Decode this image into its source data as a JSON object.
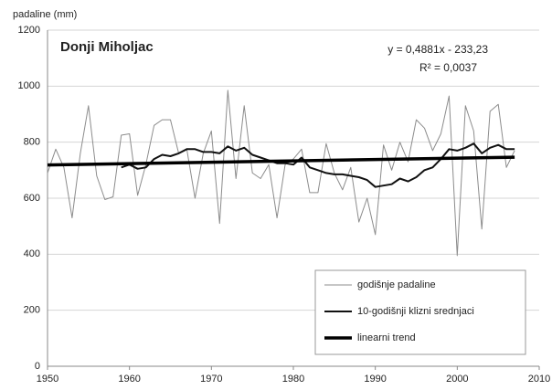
{
  "chart_data": {
    "type": "line",
    "title": "Donji Miholjac",
    "y_label": "padaline (mm)",
    "annotations": [
      "y = 0,4881x - 233,23",
      "R² = 0,0037"
    ],
    "x": [
      1950,
      1951,
      1952,
      1953,
      1954,
      1955,
      1956,
      1957,
      1958,
      1959,
      1960,
      1961,
      1962,
      1963,
      1964,
      1965,
      1966,
      1967,
      1968,
      1969,
      1970,
      1971,
      1972,
      1973,
      1974,
      1975,
      1976,
      1977,
      1978,
      1979,
      1980,
      1981,
      1982,
      1983,
      1984,
      1985,
      1986,
      1987,
      1988,
      1989,
      1990,
      1991,
      1992,
      1993,
      1994,
      1995,
      1996,
      1997,
      1998,
      1999,
      2000,
      2001,
      2002,
      2003,
      2004,
      2005,
      2006,
      2007
    ],
    "series": [
      {
        "name": "godišnje padaline",
        "color": "#8c8c8c",
        "width": 1,
        "values": [
          690,
          775,
          710,
          530,
          760,
          930,
          680,
          595,
          605,
          825,
          830,
          610,
          720,
          860,
          880,
          880,
          760,
          775,
          600,
          760,
          840,
          510,
          985,
          670,
          930,
          690,
          670,
          720,
          530,
          720,
          740,
          775,
          620,
          620,
          795,
          690,
          630,
          710,
          515,
          600,
          470,
          790,
          700,
          800,
          730,
          880,
          850,
          770,
          830,
          965,
          395,
          930,
          840,
          490,
          910,
          935,
          710,
          770
        ]
      },
      {
        "name": "10-godišnji klizni srednjaci",
        "color": "#111111",
        "width": 2,
        "values": [
          null,
          null,
          null,
          null,
          null,
          null,
          null,
          null,
          null,
          710,
          720,
          705,
          710,
          740,
          755,
          750,
          760,
          775,
          775,
          765,
          765,
          760,
          785,
          770,
          780,
          755,
          745,
          735,
          725,
          725,
          720,
          745,
          710,
          700,
          690,
          685,
          685,
          680,
          675,
          665,
          640,
          645,
          650,
          670,
          660,
          675,
          700,
          710,
          740,
          775,
          770,
          780,
          795,
          760,
          780,
          790,
          775,
          775
        ]
      },
      {
        "name": "linearni trend",
        "color": "#000000",
        "width": 3.5,
        "x": [
          1950,
          2007
        ],
        "values": [
          718.6,
          746.4
        ]
      }
    ],
    "xlim": [
      1950,
      2010
    ],
    "xticks": [
      1950,
      1960,
      1970,
      1980,
      1990,
      2000,
      2010
    ],
    "ylim": [
      0,
      1200
    ],
    "yticks": [
      0,
      200,
      400,
      600,
      800,
      1000,
      1200
    ],
    "grid": true,
    "legend": "lower right"
  }
}
